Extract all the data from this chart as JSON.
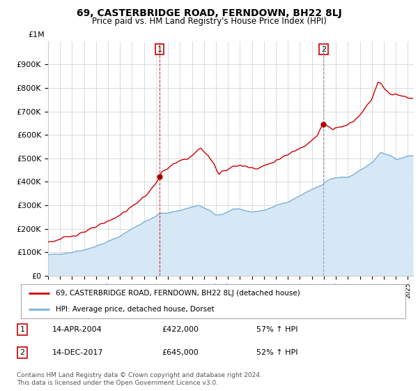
{
  "title": "69, CASTERBRIDGE ROAD, FERNDOWN, BH22 8LJ",
  "subtitle": "Price paid vs. HM Land Registry's House Price Index (HPI)",
  "red_label": "69, CASTERBRIDGE ROAD, FERNDOWN, BH22 8LJ (detached house)",
  "blue_label": "HPI: Average price, detached house, Dorset",
  "sale1_label": "14-APR-2004",
  "sale1_price": "£422,000",
  "sale1_hpi": "57% ↑ HPI",
  "sale2_label": "14-DEC-2017",
  "sale2_price": "£645,000",
  "sale2_hpi": "52% ↑ HPI",
  "footnote1": "Contains HM Land Registry data © Crown copyright and database right 2024.",
  "footnote2": "This data is licensed under the Open Government Licence v3.0.",
  "red_color": "#cc0000",
  "blue_color": "#7bafd4",
  "blue_fill_color": "#d6e8f5",
  "background_color": "#ffffff",
  "grid_color": "#cccccc",
  "ylim": [
    0,
    1000000
  ],
  "yticks": [
    0,
    100000,
    200000,
    300000,
    400000,
    500000,
    600000,
    700000,
    800000,
    900000
  ],
  "ytick_labels": [
    "£0",
    "£100K",
    "£200K",
    "£300K",
    "£400K",
    "£500K",
    "£600K",
    "£700K",
    "£800K",
    "£900K"
  ],
  "top_label": "£1M",
  "xlim_left": 1995.0,
  "xlim_right": 2025.5,
  "sale1_x": 2004.29,
  "sale1_y": 422000,
  "sale2_x": 2017.96,
  "sale2_y": 645000
}
